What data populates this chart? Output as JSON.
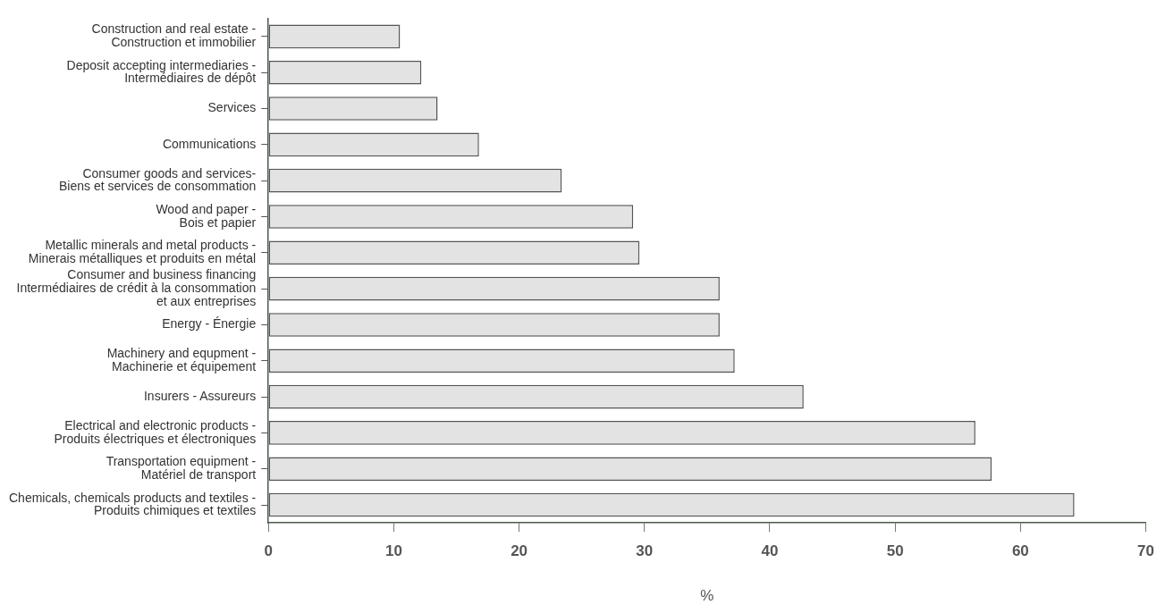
{
  "chart_data": {
    "type": "bar",
    "orientation": "horizontal",
    "xlabel": "%",
    "categories": [
      "Construction and real estate -\nConstruction et immobilier",
      "Deposit accepting intermediaries -\nIntermédiaires de dépôt",
      "Services",
      "Communications",
      "Consumer goods and services-\nBiens et services de consommation",
      "Wood and paper -\nBois et papier",
      "Metallic minerals and metal products -\nMinerais métalliques et produits en métal",
      "Consumer and business financing\nIntermédiaires de crédit à la consommation\net aux entreprises",
      "Energy - Énergie",
      "Machinery and equpment -\nMachinerie et équipement",
      "Insurers - Assureurs",
      "Electrical and electronic products -\nProduits électriques et électroniques",
      "Transportation equipment -\nMatériel de transport",
      "Chemicals, chemicals products and textiles -\nProduits chimiques et textiles"
    ],
    "values": [
      10.5,
      12.2,
      13.5,
      16.8,
      23.4,
      29.1,
      29.6,
      36.0,
      36.0,
      37.2,
      42.7,
      56.4,
      57.7,
      64.3
    ],
    "color": "#e3e3e3",
    "xlim": [
      0,
      70
    ],
    "xticks": [
      0,
      10,
      20,
      30,
      40,
      50,
      60,
      70
    ],
    "grid": false,
    "legend": false
  }
}
